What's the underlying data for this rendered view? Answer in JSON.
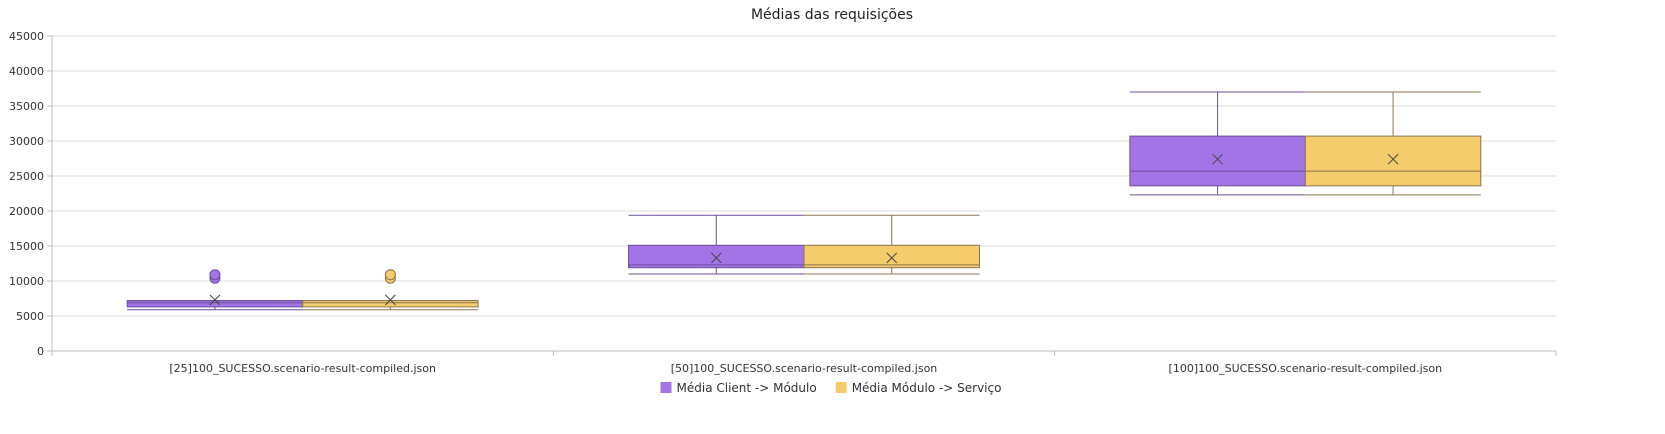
{
  "chart_data": {
    "type": "boxplot",
    "title": "Médias das requisições",
    "xlabel": "",
    "ylabel": "",
    "ylim": [
      0,
      45000
    ],
    "yticks": [
      0,
      5000,
      10000,
      15000,
      20000,
      25000,
      30000,
      35000,
      40000,
      45000
    ],
    "categories": [
      "[25]100_SUCESSO.scenario-result-compiled.json",
      "[50]100_SUCESSO.scenario-result-compiled.json",
      "[100]100_SUCESSO.scenario-result-compiled.json"
    ],
    "grid": true,
    "legend_position": "bottom",
    "series": [
      {
        "name": "Média Client -> Módulo",
        "color": "#a374e6",
        "boxes": [
          {
            "min": 5900,
            "q1": 6300,
            "median": 6900,
            "q3": 7200,
            "max": 7200,
            "mean": 7300,
            "outliers": [
              10400,
              10900
            ]
          },
          {
            "min": 11000,
            "q1": 11900,
            "median": 12300,
            "q3": 15100,
            "max": 19400,
            "mean": 13300,
            "outliers": []
          },
          {
            "min": 22300,
            "q1": 23600,
            "median": 25700,
            "q3": 30700,
            "max": 37000,
            "mean": 27400,
            "outliers": []
          }
        ]
      },
      {
        "name": "Média Módulo -> Serviço",
        "color": "#f5cc6c",
        "boxes": [
          {
            "min": 5900,
            "q1": 6300,
            "median": 6900,
            "q3": 7200,
            "max": 7200,
            "mean": 7300,
            "outliers": [
              10400,
              10900
            ]
          },
          {
            "min": 11000,
            "q1": 11900,
            "median": 12300,
            "q3": 15100,
            "max": 19400,
            "mean": 13300,
            "outliers": []
          },
          {
            "min": 22300,
            "q1": 23600,
            "median": 25700,
            "q3": 30700,
            "max": 37000,
            "mean": 27400,
            "outliers": []
          }
        ]
      }
    ]
  }
}
